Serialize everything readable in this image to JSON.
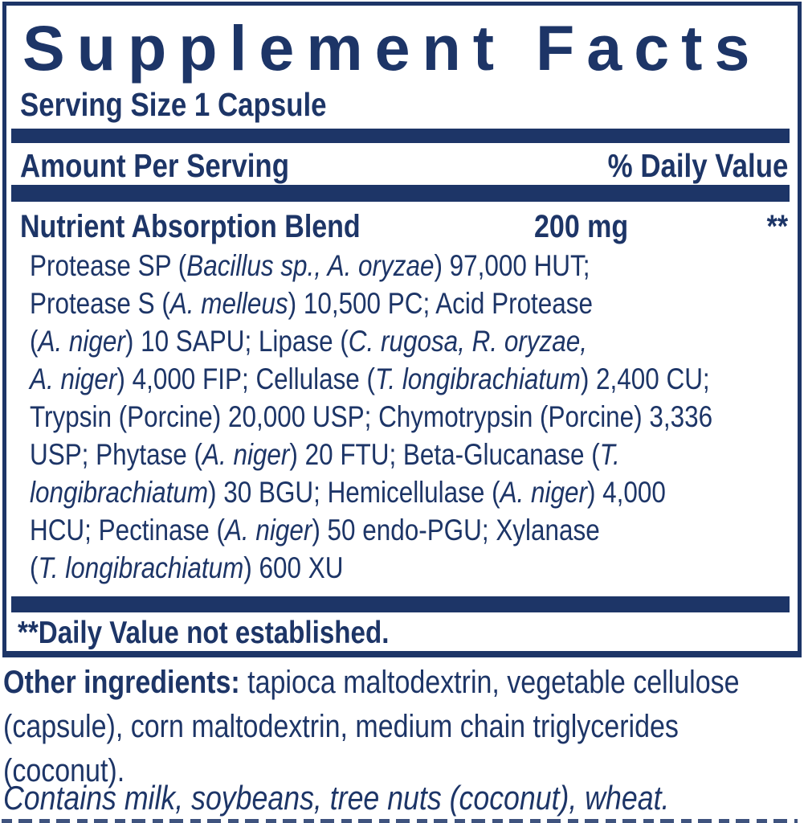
{
  "label": {
    "title": "Supplement Facts",
    "serving_size": "Serving Size 1 Capsule",
    "columns": {
      "amount": "Amount Per Serving",
      "daily_value": "% Daily Value"
    },
    "blend": {
      "name": "Nutrient Absorption Blend",
      "amount": "200 mg",
      "daily_value": "**",
      "ingredient_lines": [
        [
          {
            "t": "Protease SP ("
          },
          {
            "t": "Bacillus sp., A. oryzae",
            "i": true
          },
          {
            "t": ") 97,000 HUT;"
          }
        ],
        [
          {
            "t": "Protease S ("
          },
          {
            "t": "A. melleus",
            "i": true
          },
          {
            "t": ") 10,500 PC; Acid Protease"
          }
        ],
        [
          {
            "t": "("
          },
          {
            "t": "A. niger",
            "i": true
          },
          {
            "t": ") 10 SAPU; Lipase ("
          },
          {
            "t": "C. rugosa, R. oryzae,",
            "i": true
          }
        ],
        [
          {
            "t": "A. niger",
            "i": true
          },
          {
            "t": ") 4,000 FIP; Cellulase ("
          },
          {
            "t": "T. longibrachiatum",
            "i": true
          },
          {
            "t": ") 2,400 CU;"
          }
        ],
        [
          {
            "t": "Trypsin (Porcine) 20,000 USP; Chymotrypsin (Porcine) 3,336"
          }
        ],
        [
          {
            "t": "USP; Phytase ("
          },
          {
            "t": "A. niger",
            "i": true
          },
          {
            "t": ") 20 FTU; Beta-Glucanase ("
          },
          {
            "t": "T.",
            "i": true
          }
        ],
        [
          {
            "t": "longibrachiatum",
            "i": true
          },
          {
            "t": ") 30 BGU; Hemicellulase ("
          },
          {
            "t": "A. niger",
            "i": true
          },
          {
            "t": ") 4,000"
          }
        ],
        [
          {
            "t": "HCU; Pectinase ("
          },
          {
            "t": "A. niger",
            "i": true
          },
          {
            "t": ") 50 endo-PGU; Xylanase"
          }
        ],
        [
          {
            "t": "("
          },
          {
            "t": "T. longibrachiatum",
            "i": true
          },
          {
            "t": ") 600 XU"
          }
        ]
      ]
    },
    "footnote": "**Daily Value not established.",
    "other_ingredients_label": "Other ingredients:",
    "other_ingredients_text": " tapioca maltodextrin, vegetable cellulose (capsule), corn maltodextrin, medium chain triglycerides (coconut).",
    "contains": "Contains milk, soybeans, tree nuts (coconut), wheat.",
    "colors": {
      "navy": "#1d3567"
    }
  }
}
